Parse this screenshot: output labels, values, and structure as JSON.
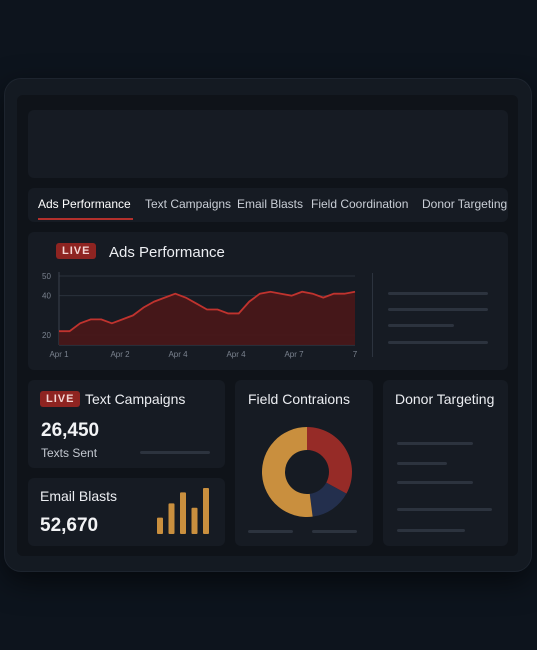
{
  "tabs": [
    {
      "label": "Ads Performance"
    },
    {
      "label": "Text Campaigns"
    },
    {
      "label": "Email Blasts"
    },
    {
      "label": "Field Coordination"
    },
    {
      "label": "Donor Targeting"
    }
  ],
  "ads": {
    "badge": "LIVE",
    "title": "Ads Performance"
  },
  "text_campaigns": {
    "badge": "LIVE",
    "title": "Text Campaigns",
    "value": "26,450",
    "caption": "Texts Sent"
  },
  "email": {
    "title": "Email Blasts",
    "value": "52,670"
  },
  "field": {
    "title": "Field Contraions"
  },
  "donor": {
    "title": "Donor Targeting"
  },
  "colors": {
    "accent_red": "#b3302c",
    "gold": "#c98f3e",
    "navy": "#232f4d"
  },
  "chart_data": [
    {
      "type": "area",
      "y_ticks": [
        "50",
        "40",
        "20"
      ],
      "x_ticks": [
        "Apr 1",
        "Apr 2",
        "Apr 4",
        "Apr 4",
        "Apr 7",
        "7"
      ],
      "ylim": [
        15,
        52
      ],
      "values": [
        22,
        22,
        26,
        28,
        28,
        26,
        28,
        30,
        34,
        37,
        39,
        41,
        39,
        36,
        33,
        33,
        31,
        31,
        37,
        41,
        42,
        41,
        40,
        42,
        41,
        39,
        41,
        41,
        42
      ],
      "grid": true
    },
    {
      "type": "pie",
      "values": [
        0.33,
        0.15,
        0.52
      ],
      "colors": [
        "#962b27",
        "#232f4d",
        "#c98f3e"
      ],
      "donut": true
    },
    {
      "type": "bar",
      "values": [
        15,
        28,
        38,
        24,
        42
      ],
      "color": "#c98f3e"
    }
  ]
}
